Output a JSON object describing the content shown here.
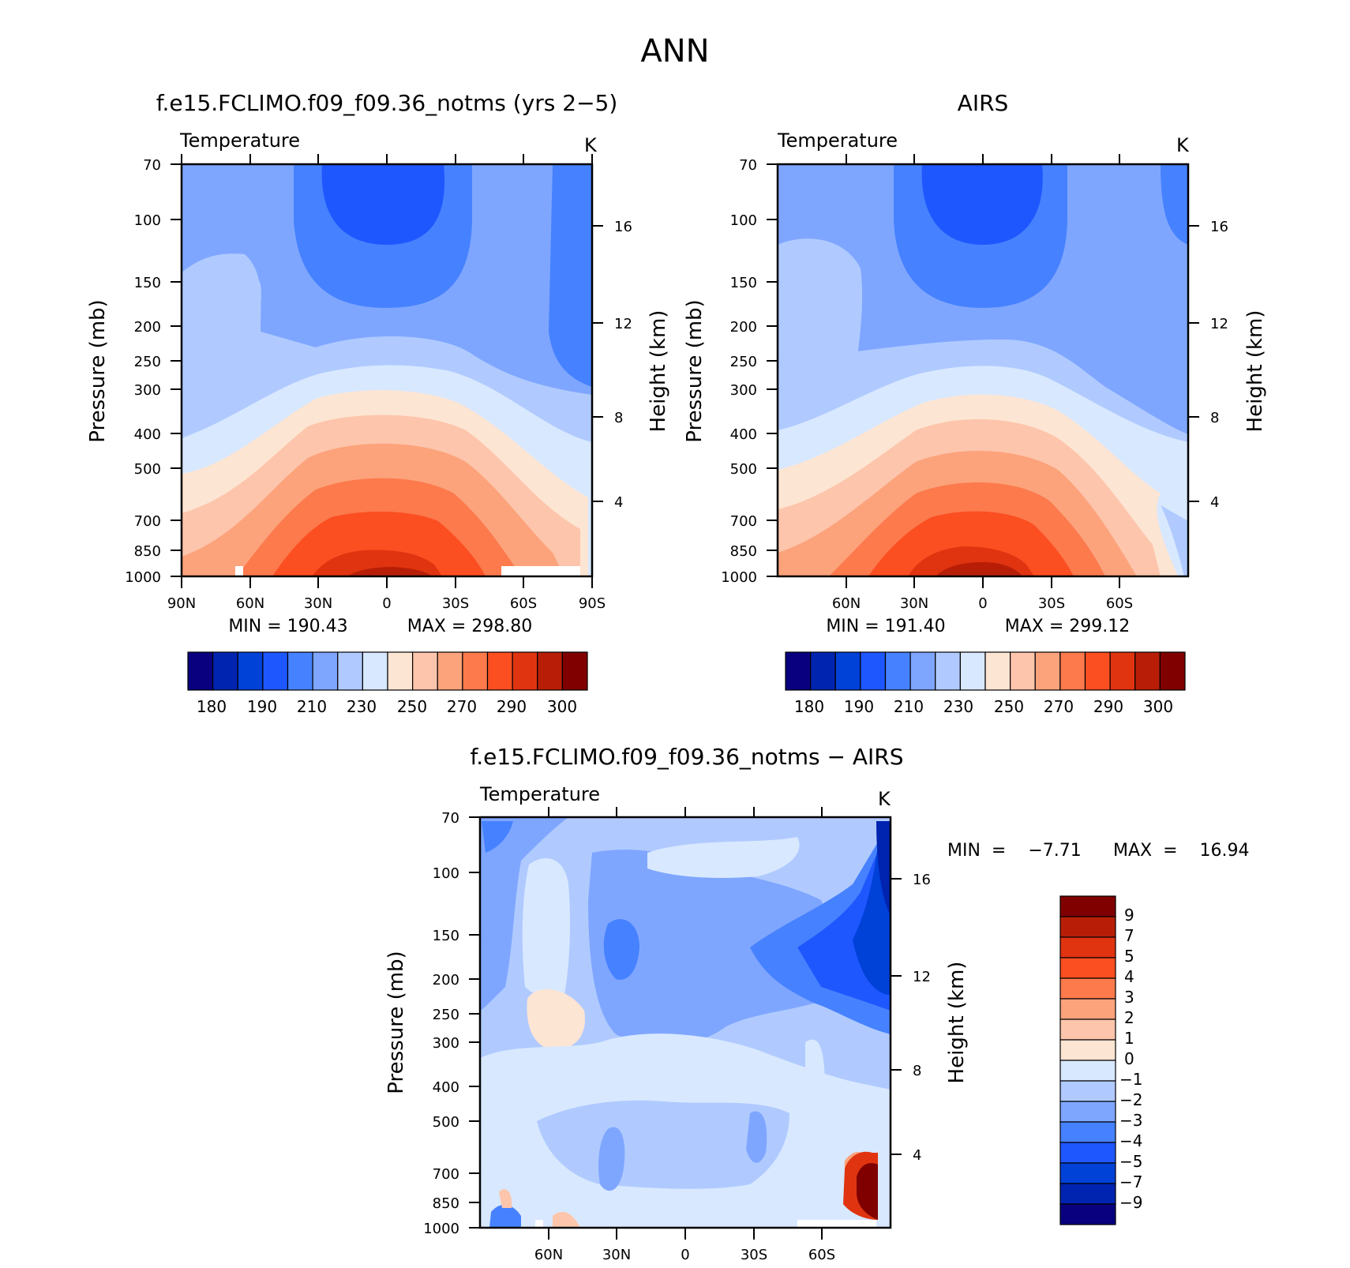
{
  "figure_title": "ANN",
  "colors": {
    "abs": [
      "#08007f",
      "#0024b0",
      "#0041d8",
      "#1f57ff",
      "#4682ff",
      "#7fa6ff",
      "#b0caff",
      "#d8e8ff",
      "#fde5d3",
      "#fdc5ab",
      "#fca37c",
      "#fc7a4c",
      "#fb4e21",
      "#e03410",
      "#b81e07",
      "#800000"
    ],
    "diff": [
      "#08007f",
      "#0024b0",
      "#0041d8",
      "#1f57ff",
      "#4682ff",
      "#7fa6ff",
      "#b0caff",
      "#d8e8ff",
      "#fde5d3",
      "#fdc5ab",
      "#fca37c",
      "#fc7a4c",
      "#fb4e21",
      "#e03410",
      "#b81e07",
      "#800000"
    ]
  },
  "chart_data": [
    {
      "id": "model",
      "type": "contour",
      "title": "f.e15.FCLIMO.f09_f09.36_notms (yrs 2−5)",
      "left_label": "Temperature",
      "units": "K",
      "ylabel": "Pressure (mb)",
      "ylabel2": "Height (km)",
      "y_ticks": [
        "70",
        "100",
        "150",
        "200",
        "250",
        "300",
        "400",
        "500",
        "700",
        "850",
        "1000"
      ],
      "y2_ticks": [
        "16",
        "12",
        "8",
        "4"
      ],
      "x_ticks": [
        "90N",
        "60N",
        "30N",
        "0",
        "30S",
        "60S",
        "90S"
      ],
      "xlim": [
        "90N",
        "90S"
      ],
      "ylim_mb": [
        1000,
        70
      ],
      "min_label": "MIN  =  190.43",
      "max_label": "MAX  =  298.80",
      "min": 190.43,
      "max": 298.8,
      "colorbar_labels": [
        "180",
        "190",
        "210",
        "230",
        "250",
        "270",
        "290",
        "300"
      ],
      "levels": [
        180,
        185,
        190,
        200,
        210,
        220,
        230,
        240,
        250,
        260,
        270,
        280,
        290,
        295,
        300
      ]
    },
    {
      "id": "obs",
      "type": "contour",
      "title": "AIRS",
      "left_label": "Temperature",
      "units": "K",
      "ylabel": "Pressure (mb)",
      "ylabel2": "Height (km)",
      "y_ticks": [
        "70",
        "100",
        "150",
        "200",
        "250",
        "300",
        "400",
        "500",
        "700",
        "850",
        "1000"
      ],
      "y2_ticks": [
        "16",
        "12",
        "8",
        "4"
      ],
      "x_ticks": [
        "60N",
        "30N",
        "0",
        "30S",
        "60S"
      ],
      "min_label": "MIN  =  191.40",
      "max_label": "MAX  =  299.12",
      "min": 191.4,
      "max": 299.12,
      "colorbar_labels": [
        "180",
        "190",
        "210",
        "230",
        "250",
        "270",
        "290",
        "300"
      ],
      "levels": [
        180,
        185,
        190,
        200,
        210,
        220,
        230,
        240,
        250,
        260,
        270,
        280,
        290,
        295,
        300
      ]
    },
    {
      "id": "diff",
      "type": "contour",
      "title": "f.e15.FCLIMO.f09_f09.36_notms − AIRS",
      "left_label": "Temperature",
      "units": "K",
      "ylabel": "Pressure (mb)",
      "ylabel2": "Height (km)",
      "y_ticks": [
        "70",
        "100",
        "150",
        "200",
        "250",
        "300",
        "400",
        "500",
        "700",
        "850",
        "1000"
      ],
      "y2_ticks": [
        "16",
        "12",
        "8",
        "4"
      ],
      "x_ticks": [
        "60N",
        "30N",
        "0",
        "30S",
        "60S"
      ],
      "min_label": "MIN  =    −7.71",
      "max_label": "MAX  =    16.94",
      "min": -7.71,
      "max": 16.94,
      "colorbar_labels": [
        "9",
        "7",
        "5",
        "4",
        "3",
        "2",
        "1",
        "0",
        "−1",
        "−2",
        "−3",
        "−4",
        "−5",
        "−7",
        "−9"
      ],
      "levels": [
        -9,
        -7,
        -5,
        -4,
        -3,
        -2,
        -1,
        0,
        1,
        2,
        3,
        4,
        5,
        7,
        9
      ]
    }
  ]
}
